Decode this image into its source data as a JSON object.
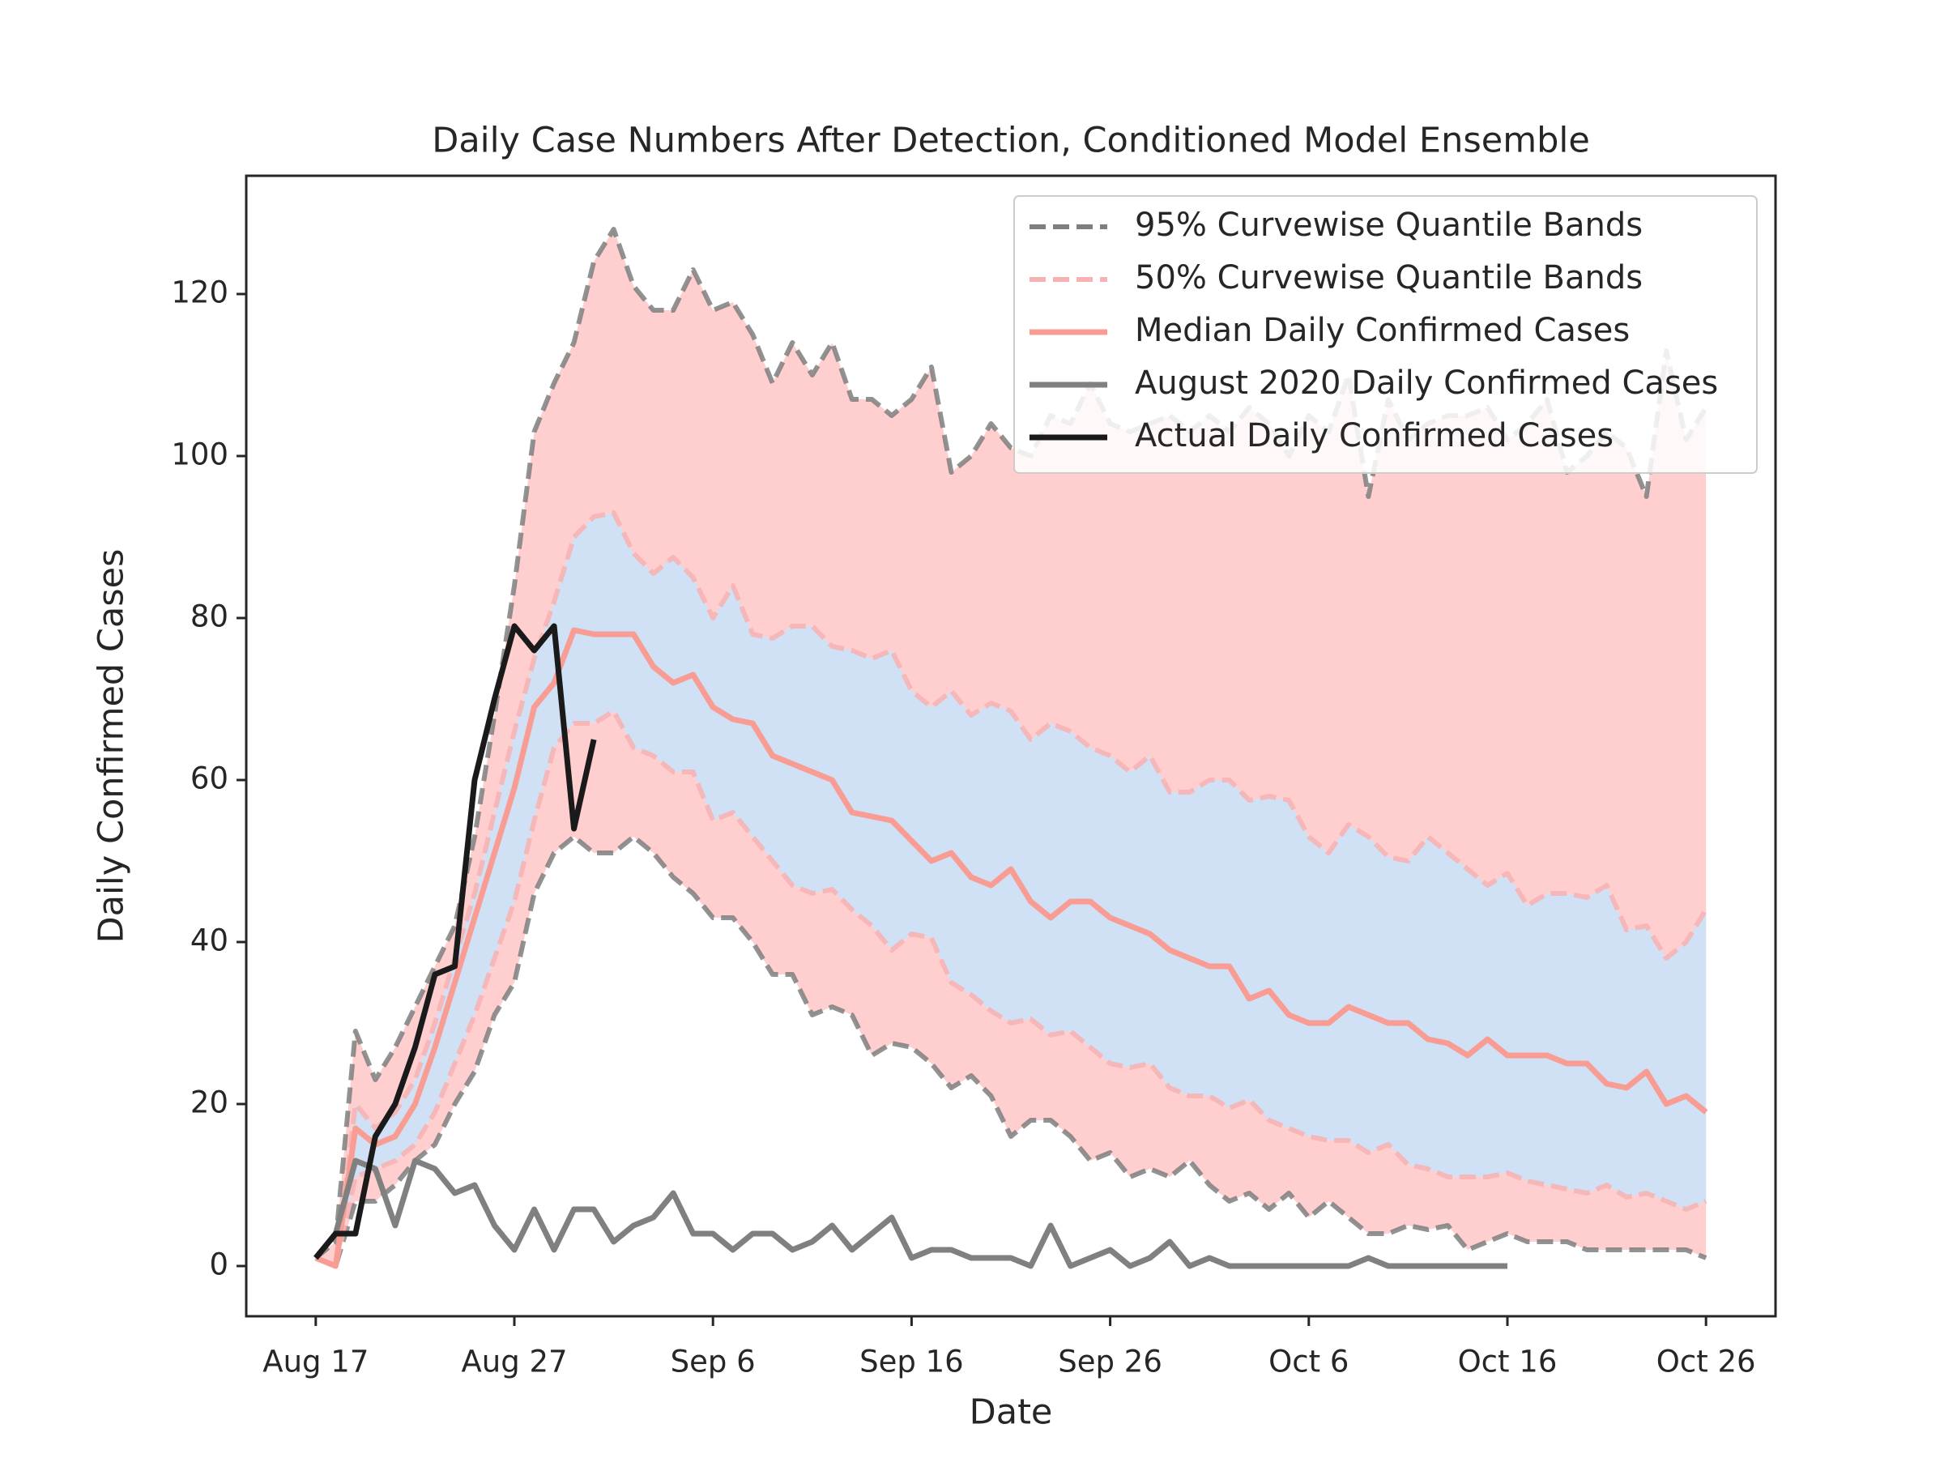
{
  "chart_data": {
    "type": "line",
    "title": "Daily Case Numbers After Detection, Conditioned Model Ensemble",
    "xlabel": "Date",
    "ylabel": "Daily Confirmed Cases",
    "categories": [
      "Aug 17",
      null,
      null,
      null,
      null,
      null,
      null,
      null,
      null,
      null,
      "Aug 27",
      null,
      null,
      null,
      null,
      null,
      null,
      null,
      null,
      null,
      "Sep 6",
      null,
      null,
      null,
      null,
      null,
      null,
      null,
      null,
      null,
      "Sep 16",
      null,
      null,
      null,
      null,
      null,
      null,
      null,
      null,
      null,
      "Sep 26",
      null,
      null,
      null,
      null,
      null,
      null,
      null,
      null,
      null,
      "Oct 6",
      null,
      null,
      null,
      null,
      null,
      null,
      null,
      null,
      null,
      "Oct 16",
      null,
      null,
      null,
      null,
      null,
      null,
      null,
      null,
      null,
      "Oct 26"
    ],
    "ylim": [
      -6.2,
      134.6
    ],
    "yticks": [
      0,
      20,
      40,
      60,
      80,
      100,
      120
    ],
    "legend": "upper right",
    "series": [
      {
        "name": "95% Curvewise Quantile Bands",
        "color": "#7f7f7f",
        "style": "dashed",
        "fill": "#ffcccc",
        "upper": [
          1,
          3,
          29,
          23,
          27,
          32,
          37,
          42,
          53,
          68,
          84,
          103,
          109,
          114,
          124,
          128,
          121,
          118,
          118,
          123,
          118,
          119,
          115,
          109,
          114,
          110,
          114,
          107,
          107,
          105,
          107,
          111,
          98,
          100,
          104,
          101,
          100,
          105,
          104,
          109,
          104,
          103,
          104,
          105,
          103,
          105,
          103,
          106,
          104,
          100,
          105,
          103,
          110,
          95,
          107,
          102,
          104,
          105,
          105,
          106,
          102,
          104,
          107,
          98,
          100,
          103,
          101,
          95,
          113,
          102,
          106
        ],
        "lower": [
          1,
          0,
          8,
          8,
          10,
          13,
          15,
          20,
          24,
          31,
          35,
          46,
          51,
          53,
          51,
          51,
          53,
          51,
          48,
          46,
          43,
          43,
          40,
          36,
          36,
          31,
          32,
          31,
          26,
          27.5,
          27,
          25,
          22,
          23.5,
          21,
          16,
          18,
          18,
          16,
          13,
          14,
          11,
          12,
          11,
          13,
          10,
          8,
          9,
          7,
          9,
          6,
          8,
          6,
          4,
          4,
          5,
          4.5,
          5,
          2,
          3,
          4,
          3,
          3,
          3,
          2,
          2,
          2,
          2,
          2,
          2,
          1
        ]
      },
      {
        "name": "50% Curvewise Quantile Bands",
        "color": "#f7b2b2",
        "style": "dashed",
        "fill": "#cfe2f7",
        "upper": [
          1,
          0,
          20,
          17,
          19,
          23,
          30,
          38,
          46,
          56,
          66,
          75,
          82,
          90,
          92.5,
          93,
          88,
          85.5,
          87.5,
          85,
          80,
          84,
          78,
          77.5,
          79,
          79,
          76.5,
          76,
          75,
          76,
          71,
          69,
          71,
          68,
          69.5,
          68.5,
          65,
          67,
          66,
          64,
          63,
          61,
          63,
          58.5,
          58.5,
          60,
          60,
          57.5,
          58,
          57.5,
          53,
          51,
          54.5,
          53,
          50.5,
          50,
          53,
          51,
          49,
          47,
          48.5,
          44.5,
          46,
          46,
          45.5,
          47,
          41.5,
          42,
          38,
          40,
          44
        ],
        "lower": [
          1,
          0,
          11,
          12,
          13,
          15,
          19,
          25,
          31,
          38,
          45,
          55,
          64,
          67,
          67,
          68.5,
          64,
          63,
          61,
          61,
          55,
          56,
          53,
          50,
          47,
          46,
          46.5,
          44,
          42,
          39,
          41,
          40.5,
          35,
          33.5,
          31.5,
          30,
          30.5,
          28.5,
          29,
          27,
          25,
          24.5,
          25,
          22,
          21,
          21,
          19.5,
          20.5,
          18,
          17,
          16,
          15.5,
          15.5,
          14,
          15,
          12.5,
          12,
          11,
          11,
          11,
          11.5,
          10.5,
          10,
          9.5,
          9,
          10,
          8.5,
          9,
          8,
          7,
          8
        ]
      },
      {
        "name": "Median Daily Confirmed Cases",
        "color": "#f89c94",
        "style": "solid",
        "values": [
          1,
          0,
          17,
          15,
          16,
          20,
          27,
          35,
          43,
          51,
          59,
          69,
          72,
          78.5,
          78,
          78,
          78,
          74,
          72,
          73,
          69,
          67.5,
          67,
          63,
          62,
          61,
          60,
          56,
          55.5,
          55,
          52.5,
          50,
          51,
          48,
          47,
          49,
          45,
          43,
          45,
          45,
          43,
          42,
          41,
          39,
          38,
          37,
          37,
          33,
          34,
          31,
          30,
          30,
          32,
          31,
          30,
          30,
          28,
          27.5,
          26,
          28,
          26,
          26,
          26,
          25,
          25,
          22.5,
          22,
          24,
          20,
          21,
          19
        ]
      },
      {
        "name": "August 2020 Daily Confirmed Cases",
        "color": "#808080",
        "style": "solid",
        "values": [
          1,
          4,
          13,
          12,
          5,
          13,
          12,
          9,
          10,
          5,
          2,
          7,
          2,
          7,
          7,
          3,
          5,
          6,
          9,
          4,
          4,
          2,
          4,
          4,
          2,
          3,
          5,
          2,
          4,
          6,
          1,
          2,
          2,
          1,
          1,
          1,
          0,
          5,
          0,
          1,
          2,
          0,
          1,
          3,
          0,
          1,
          0,
          0,
          0,
          0,
          0,
          0,
          0,
          1,
          0,
          0,
          0,
          0,
          0,
          0,
          0,
          null,
          null,
          null,
          null,
          null,
          null,
          null,
          null,
          null,
          null
        ]
      },
      {
        "name": "Actual Daily Confirmed Cases",
        "color": "#1a1a1a",
        "style": "solid",
        "values": [
          1,
          4,
          4,
          16,
          20,
          27,
          36,
          37,
          60,
          70,
          79,
          76,
          79,
          54,
          65,
          null,
          null,
          null,
          null,
          null,
          null,
          null,
          null,
          null,
          null,
          null,
          null,
          null,
          null,
          null,
          null,
          null,
          null,
          null,
          null,
          null,
          null,
          null,
          null,
          null,
          null,
          null,
          null,
          null,
          null,
          null,
          null,
          null,
          null,
          null,
          null,
          null,
          null,
          null,
          null,
          null,
          null,
          null,
          null,
          null,
          null,
          null,
          null,
          null,
          null,
          null,
          null,
          null,
          null,
          null,
          null
        ]
      }
    ]
  }
}
